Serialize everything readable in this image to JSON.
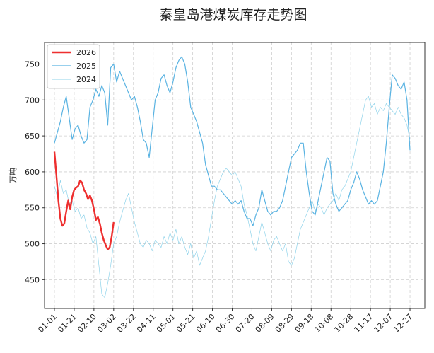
{
  "chart_data": {
    "type": "line",
    "title": "秦皇岛港煤炭库存走势图",
    "xlabel": "",
    "ylabel": "万吨",
    "xlim": [
      -10,
      375
    ],
    "ylim": [
      410,
      780
    ],
    "grid": true,
    "legend_placement": "top-left",
    "x_ticks": [
      {
        "pos": 0,
        "label": "01-01"
      },
      {
        "pos": 20,
        "label": "01-21"
      },
      {
        "pos": 40,
        "label": "02-10"
      },
      {
        "pos": 60,
        "label": "03-02"
      },
      {
        "pos": 80,
        "label": "03-22"
      },
      {
        "pos": 100,
        "label": "04-11"
      },
      {
        "pos": 120,
        "label": "05-01"
      },
      {
        "pos": 140,
        "label": "05-21"
      },
      {
        "pos": 160,
        "label": "06-10"
      },
      {
        "pos": 180,
        "label": "06-30"
      },
      {
        "pos": 200,
        "label": "07-20"
      },
      {
        "pos": 220,
        "label": "08-09"
      },
      {
        "pos": 240,
        "label": "08-29"
      },
      {
        "pos": 260,
        "label": "09-18"
      },
      {
        "pos": 280,
        "label": "10-08"
      },
      {
        "pos": 300,
        "label": "10-28"
      },
      {
        "pos": 320,
        "label": "11-17"
      },
      {
        "pos": 340,
        "label": "12-07"
      },
      {
        "pos": 360,
        "label": "12-27"
      }
    ],
    "y_ticks": [
      450,
      500,
      550,
      600,
      650,
      700,
      750
    ],
    "series": [
      {
        "name": "2024",
        "color": "#8fd3ea",
        "width": 0.7,
        "x": [
          0,
          3,
          6,
          9,
          12,
          15,
          18,
          21,
          24,
          27,
          30,
          33,
          36,
          39,
          42,
          45,
          48,
          51,
          54,
          57,
          60,
          63,
          66,
          69,
          72,
          75,
          78,
          81,
          84,
          87,
          90,
          93,
          96,
          99,
          102,
          105,
          108,
          111,
          114,
          117,
          120,
          123,
          126,
          129,
          132,
          135,
          138,
          141,
          144,
          147,
          150,
          153,
          156,
          159,
          162,
          165,
          168,
          171,
          174,
          177,
          180,
          183,
          186,
          189,
          192,
          195,
          198,
          201,
          204,
          207,
          210,
          213,
          216,
          219,
          222,
          225,
          228,
          231,
          234,
          237,
          240,
          243,
          246,
          249,
          252,
          255,
          258,
          261,
          264,
          267,
          270,
          273,
          276,
          279,
          282,
          285,
          288,
          291,
          294,
          297,
          300,
          303,
          306,
          309,
          312,
          315,
          318,
          321,
          324,
          327,
          330,
          333,
          336,
          339,
          342,
          345,
          348,
          351,
          354,
          357,
          360
        ],
        "values": [
          580,
          565,
          588,
          570,
          575,
          555,
          560,
          545,
          550,
          535,
          540,
          522,
          515,
          500,
          510,
          470,
          430,
          425,
          445,
          470,
          500,
          510,
          530,
          545,
          560,
          570,
          550,
          530,
          515,
          500,
          495,
          505,
          500,
          490,
          505,
          500,
          495,
          510,
          500,
          515,
          505,
          520,
          500,
          510,
          495,
          485,
          500,
          480,
          490,
          470,
          480,
          490,
          510,
          535,
          560,
          580,
          590,
          600,
          605,
          600,
          595,
          600,
          590,
          580,
          555,
          540,
          520,
          500,
          490,
          510,
          530,
          515,
          500,
          490,
          505,
          510,
          500,
          490,
          500,
          475,
          470,
          480,
          500,
          520,
          530,
          540,
          550,
          560,
          545,
          555,
          550,
          540,
          550,
          555,
          560,
          570,
          560,
          575,
          580,
          590,
          600,
          620,
          640,
          660,
          680,
          700,
          705,
          690,
          695,
          680,
          690,
          685,
          695,
          690,
          685,
          680,
          690,
          680,
          675,
          665,
          645
        ]
      },
      {
        "name": "2025",
        "color": "#5ab3e2",
        "width": 1.2,
        "x": [
          0,
          3,
          6,
          9,
          12,
          15,
          18,
          21,
          24,
          27,
          30,
          33,
          36,
          39,
          42,
          45,
          48,
          51,
          54,
          57,
          60,
          63,
          66,
          69,
          72,
          75,
          78,
          81,
          84,
          87,
          90,
          93,
          96,
          99,
          102,
          105,
          108,
          111,
          114,
          117,
          120,
          123,
          126,
          129,
          132,
          135,
          138,
          141,
          144,
          147,
          150,
          153,
          156,
          159,
          162,
          165,
          168,
          171,
          174,
          177,
          180,
          183,
          186,
          189,
          192,
          195,
          198,
          201,
          204,
          207,
          210,
          213,
          216,
          219,
          222,
          225,
          228,
          231,
          234,
          237,
          240,
          243,
          246,
          249,
          252,
          255,
          258,
          261,
          264,
          267,
          270,
          273,
          276,
          279,
          282,
          285,
          288,
          291,
          294,
          297,
          300,
          303,
          306,
          309,
          312,
          315,
          318,
          321,
          324,
          327,
          330,
          333,
          336,
          339,
          342,
          345,
          348,
          351,
          354,
          357,
          360
        ],
        "values": [
          640,
          655,
          670,
          690,
          705,
          675,
          645,
          660,
          665,
          650,
          640,
          645,
          690,
          700,
          715,
          705,
          720,
          710,
          665,
          745,
          750,
          725,
          740,
          730,
          720,
          710,
          700,
          705,
          690,
          670,
          645,
          640,
          620,
          660,
          700,
          710,
          730,
          735,
          720,
          710,
          725,
          745,
          755,
          760,
          750,
          725,
          690,
          680,
          670,
          655,
          640,
          610,
          595,
          580,
          580,
          575,
          575,
          570,
          565,
          560,
          555,
          560,
          555,
          560,
          545,
          535,
          535,
          525,
          540,
          550,
          575,
          560,
          545,
          540,
          545,
          545,
          550,
          560,
          580,
          600,
          620,
          625,
          630,
          640,
          640,
          600,
          570,
          545,
          540,
          560,
          580,
          600,
          620,
          615,
          570,
          555,
          545,
          550,
          555,
          560,
          575,
          585,
          600,
          590,
          575,
          565,
          555,
          560,
          555,
          560,
          580,
          600,
          640,
          690,
          735,
          730,
          720,
          715,
          725,
          700,
          630
        ]
      },
      {
        "name": "2026",
        "color": "#ee2f2f",
        "width": 2.4,
        "x": [
          0,
          2,
          4,
          6,
          8,
          10,
          12,
          14,
          16,
          18,
          20,
          22,
          24,
          26,
          28,
          30,
          32,
          34,
          36,
          38,
          40,
          42,
          44,
          46,
          48,
          50,
          52,
          54,
          56,
          58,
          60
        ],
        "values": [
          628,
          595,
          560,
          535,
          525,
          528,
          545,
          560,
          548,
          565,
          575,
          578,
          580,
          588,
          585,
          575,
          570,
          562,
          567,
          560,
          548,
          533,
          537,
          528,
          515,
          505,
          498,
          492,
          495,
          510,
          530
        ]
      }
    ]
  }
}
